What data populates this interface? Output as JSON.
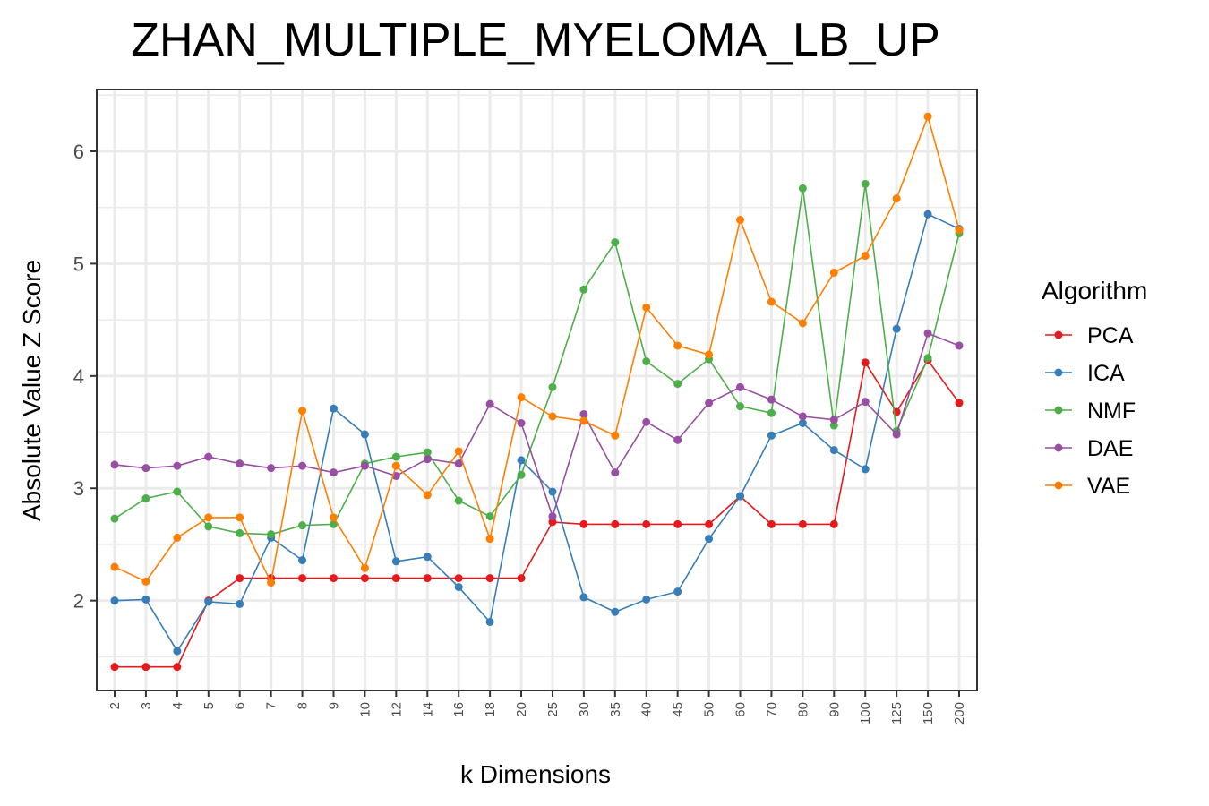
{
  "chart_data": {
    "type": "line",
    "title": "ZHAN_MULTIPLE_MYELOMA_LB_UP",
    "xlabel": "k Dimensions",
    "ylabel": "Absolute Value Z Score",
    "categories": [
      "2",
      "3",
      "4",
      "5",
      "6",
      "7",
      "8",
      "9",
      "10",
      "12",
      "14",
      "16",
      "18",
      "20",
      "25",
      "30",
      "35",
      "40",
      "45",
      "50",
      "60",
      "70",
      "80",
      "90",
      "100",
      "125",
      "150",
      "200"
    ],
    "ylim": [
      1.2,
      6.55
    ],
    "yticks": [
      2,
      3,
      4,
      5,
      6
    ],
    "grid": true,
    "legend": {
      "title": "Algorithm",
      "placement": "right"
    },
    "series": [
      {
        "name": "PCA",
        "color": "#e41a1c",
        "values": [
          1.41,
          1.41,
          1.41,
          2.0,
          2.2,
          2.2,
          2.2,
          2.2,
          2.2,
          2.2,
          2.2,
          2.2,
          2.2,
          2.2,
          2.7,
          2.68,
          2.68,
          2.68,
          2.68,
          2.68,
          2.93,
          2.68,
          2.68,
          2.68,
          4.12,
          3.68,
          4.14,
          3.76
        ]
      },
      {
        "name": "ICA",
        "color": "#377eb8",
        "values": [
          2.0,
          2.01,
          1.55,
          1.99,
          1.97,
          2.56,
          2.36,
          3.71,
          3.48,
          2.35,
          2.39,
          2.12,
          1.81,
          3.25,
          2.97,
          2.03,
          1.9,
          2.01,
          2.08,
          2.55,
          2.93,
          3.47,
          3.58,
          3.34,
          3.17,
          4.42,
          5.44,
          5.31
        ]
      },
      {
        "name": "NMF",
        "color": "#4daf4a",
        "values": [
          2.73,
          2.91,
          2.97,
          2.66,
          2.6,
          2.59,
          2.67,
          2.68,
          3.22,
          3.28,
          3.32,
          2.89,
          2.75,
          3.12,
          3.9,
          4.77,
          5.19,
          4.13,
          3.93,
          4.15,
          3.73,
          3.67,
          5.67,
          3.56,
          5.71,
          3.51,
          4.16,
          5.27
        ]
      },
      {
        "name": "DAE",
        "color": "#984ea3",
        "values": [
          3.21,
          3.18,
          3.2,
          3.28,
          3.22,
          3.18,
          3.2,
          3.14,
          3.2,
          3.11,
          3.26,
          3.22,
          3.75,
          3.58,
          2.75,
          3.66,
          3.14,
          3.59,
          3.43,
          3.76,
          3.9,
          3.79,
          3.64,
          3.61,
          3.77,
          3.48,
          4.38,
          4.27
        ]
      },
      {
        "name": "VAE",
        "color": "#ff7f00",
        "values": [
          2.3,
          2.17,
          2.56,
          2.74,
          2.74,
          2.16,
          3.69,
          2.74,
          2.29,
          3.2,
          2.94,
          3.33,
          2.55,
          3.81,
          3.64,
          3.6,
          3.47,
          4.61,
          4.27,
          4.19,
          5.39,
          4.66,
          4.47,
          4.92,
          5.07,
          5.58,
          6.31,
          5.3
        ]
      }
    ]
  }
}
